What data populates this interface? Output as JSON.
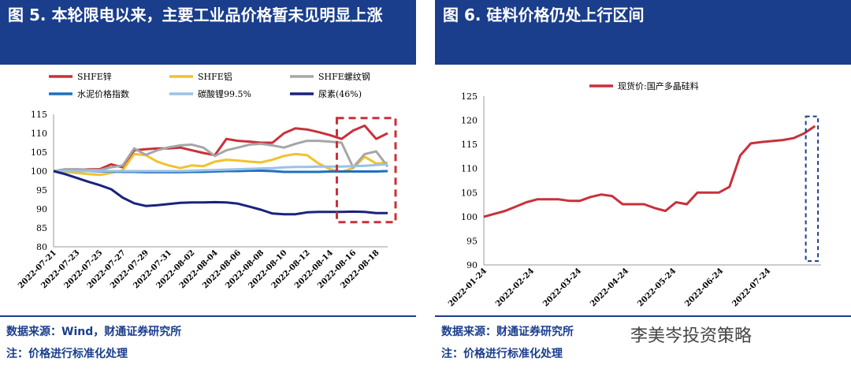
{
  "figure5": {
    "title": "图 5. 本轮限电以来，主要工业品价格暂未见明显上涨",
    "source": "数据来源：Wind，财通证券研究所",
    "note": "注：价格进行标准化处理",
    "chart_data": {
      "type": "line",
      "x": [
        "2022-07-21",
        "2022-07-22",
        "2022-07-23",
        "2022-07-24",
        "2022-07-25",
        "2022-07-26",
        "2022-07-27",
        "2022-07-28",
        "2022-07-29",
        "2022-07-30",
        "2022-07-31",
        "2022-08-01",
        "2022-08-02",
        "2022-08-03",
        "2022-08-04",
        "2022-08-05",
        "2022-08-06",
        "2022-08-07",
        "2022-08-08",
        "2022-08-09",
        "2022-08-10",
        "2022-08-11",
        "2022-08-12",
        "2022-08-13",
        "2022-08-14",
        "2022-08-15",
        "2022-08-16",
        "2022-08-17",
        "2022-08-18",
        "2022-08-19"
      ],
      "xticks": [
        "2022-07-21",
        "2022-07-23",
        "2022-07-25",
        "2022-07-27",
        "2022-07-29",
        "2022-07-31",
        "2022-08-02",
        "2022-08-04",
        "2022-08-06",
        "2022-08-08",
        "2022-08-10",
        "2022-08-12",
        "2022-08-14",
        "2022-08-16",
        "2022-08-18"
      ],
      "ylim": [
        80,
        115
      ],
      "yticks": [
        80,
        85,
        90,
        95,
        100,
        105,
        110,
        115
      ],
      "series": [
        {
          "name": "SHFE锌",
          "color": "#c8313a",
          "values": [
            100,
            100.3,
            100.3,
            100.5,
            100.5,
            101.8,
            101,
            105.5,
            105.8,
            106,
            106,
            106.2,
            105.5,
            104.8,
            104.2,
            108.5,
            108,
            107.8,
            107.5,
            107.5,
            110,
            111.3,
            111,
            110.3,
            109.5,
            108.5,
            110.7,
            112,
            108.5,
            110
          ]
        },
        {
          "name": "SHFE铝",
          "color": "#f2c12e",
          "values": [
            100,
            99.8,
            99.5,
            99.2,
            99,
            99.5,
            100.2,
            104.5,
            104.2,
            102.5,
            101.5,
            100.8,
            101.5,
            101.3,
            102.5,
            103,
            102.8,
            102.5,
            102.3,
            103,
            104,
            104.5,
            104.2,
            102,
            100.5,
            99.8,
            100.8,
            103.8,
            102,
            102.2
          ]
        },
        {
          "name": "SHFE螺纹钢",
          "color": "#a6a6a6",
          "values": [
            100,
            100.5,
            100.5,
            100.4,
            100.3,
            101,
            101.5,
            106,
            104.3,
            105.5,
            106.3,
            106.8,
            107,
            106.2,
            104,
            105.5,
            106.2,
            107,
            107.2,
            106.8,
            106.2,
            107.2,
            108,
            108,
            107.8,
            107.5,
            101,
            104.5,
            105.2,
            101.2
          ]
        },
        {
          "name": "水泥价格指数",
          "color": "#1f6fc1",
          "values": [
            100,
            100,
            100,
            100,
            99.9,
            99.9,
            99.8,
            99.8,
            99.7,
            99.7,
            99.7,
            99.7,
            99.8,
            99.8,
            99.9,
            100,
            100,
            100.1,
            100.1,
            100,
            99.8,
            99.8,
            99.8,
            99.8,
            99.9,
            99.9,
            99.9,
            99.9,
            99.9,
            100
          ]
        },
        {
          "name": "碳酸锂99.5%",
          "color": "#9bc2e6",
          "values": [
            100,
            100,
            100,
            100,
            100,
            100,
            100,
            100,
            100,
            100,
            100,
            100,
            100.1,
            100.2,
            100.3,
            100.4,
            100.5,
            100.6,
            100.7,
            100.8,
            101,
            101.1,
            101.1,
            101.2,
            101.2,
            101.2,
            101.3,
            101.4,
            101.6,
            101.8
          ]
        },
        {
          "name": "尿素(46%)",
          "color": "#1a237e",
          "values": [
            100,
            99.2,
            98.2,
            97.2,
            96.3,
            95.2,
            93,
            91.5,
            90.8,
            91,
            91.3,
            91.6,
            91.7,
            91.7,
            91.8,
            91.7,
            91.4,
            90.6,
            89.8,
            88.8,
            88.6,
            88.6,
            89.1,
            89.2,
            89.2,
            89.2,
            89.3,
            89.2,
            88.9,
            88.9
          ]
        }
      ],
      "highlight": {
        "x_from": "2022-08-15",
        "x_to": "2022-08-19",
        "y_from": 86.5,
        "y_to": 114,
        "color": "#c8313a"
      }
    }
  },
  "figure6": {
    "title": "图 6. 硅料价格仍处上行区间",
    "source": "数据来源：财通证券研究所",
    "note": "注：价格进行标准化处理",
    "watermark": "李美岑投资策略",
    "chart_data": {
      "type": "line",
      "xticks": [
        "2022-01-24",
        "2022-02-24",
        "2022-03-24",
        "2022-04-24",
        "2022-05-24",
        "2022-06-24",
        "2022-07-24"
      ],
      "ylim": [
        90,
        125
      ],
      "yticks": [
        90,
        95,
        100,
        105,
        110,
        115,
        120,
        125
      ],
      "series": [
        {
          "name": "现货价:国产多晶硅料",
          "color": "#c8313a",
          "x_days": [
            0,
            7,
            14,
            21,
            28,
            35,
            42,
            49,
            56,
            63,
            70,
            77,
            84,
            91,
            98,
            105,
            112,
            119,
            126,
            133,
            140,
            147,
            154,
            161,
            168,
            175,
            182,
            189,
            196,
            203,
            210,
            217
          ],
          "values": [
            100,
            100.6,
            101.2,
            102.1,
            103,
            103.6,
            103.6,
            103.6,
            103.3,
            103.3,
            104.1,
            104.6,
            104.3,
            102.6,
            102.6,
            102.6,
            101.8,
            101.2,
            103,
            102.6,
            105,
            105,
            105,
            106.2,
            112.7,
            115.2,
            115.5,
            115.7,
            115.9,
            116.3,
            117.3,
            118.8
          ]
        }
      ],
      "highlight": {
        "x_day_from": 211,
        "x_day_to": 219,
        "y_from": 90.8,
        "y_to": 120.8,
        "color": "#1a3e8c"
      }
    }
  }
}
